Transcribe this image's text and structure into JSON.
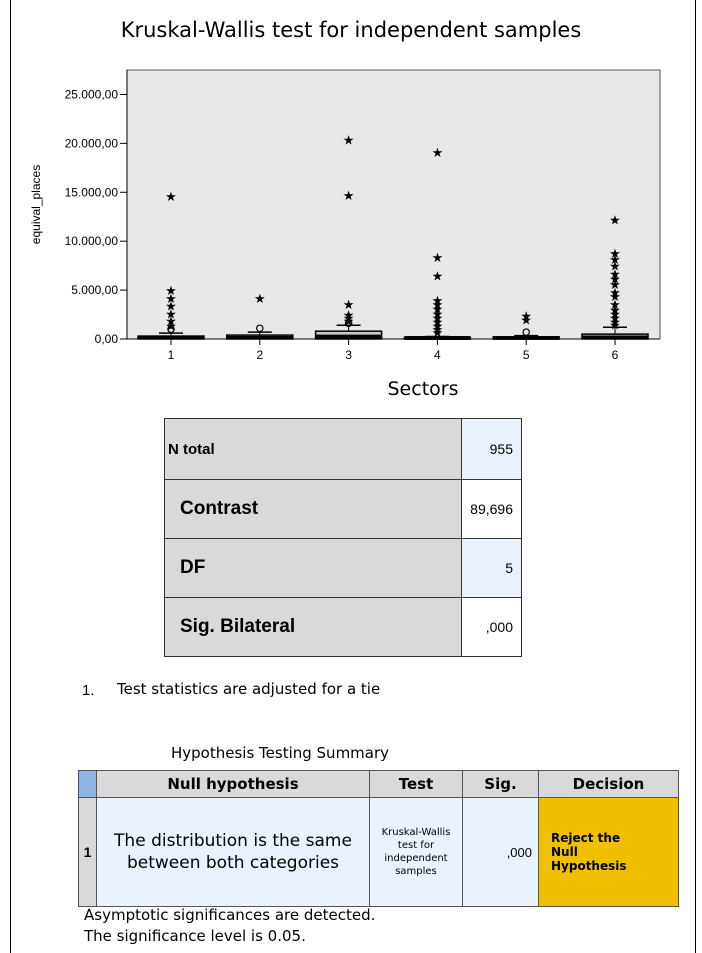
{
  "chart_data": {
    "type": "boxplot",
    "title": "Kruskal-Wallis test for independent samples",
    "xlabel": "Sectors",
    "ylabel": "equival_places",
    "ylim": [
      0,
      27500
    ],
    "yticks": [
      {
        "value": 0,
        "label": "0,00"
      },
      {
        "value": 5000,
        "label": "5.000,00"
      },
      {
        "value": 10000,
        "label": "10.000,00"
      },
      {
        "value": 15000,
        "label": "15.000,00"
      },
      {
        "value": 20000,
        "label": "20.000,00"
      },
      {
        "value": 25000,
        "label": "25.000,00"
      }
    ],
    "categories": [
      "1",
      "2",
      "3",
      "4",
      "5",
      "6"
    ],
    "boxes": [
      {
        "category": "1",
        "q1": 0,
        "median": 100,
        "q3": 300,
        "whisker_high": 600,
        "outliers": [
          1000
        ],
        "extremes": [
          14600,
          5000,
          4200,
          3400,
          2600,
          1900,
          1400
        ]
      },
      {
        "category": "2",
        "q1": 0,
        "median": 150,
        "q3": 400,
        "whisker_high": 700,
        "outliers": [
          1100
        ],
        "extremes": [
          4200
        ]
      },
      {
        "category": "3",
        "q1": 0,
        "median": 300,
        "q3": 800,
        "whisker_high": 1400,
        "outliers": [
          1600
        ],
        "extremes": [
          20400,
          14700,
          3600,
          2500,
          2200,
          1900
        ]
      },
      {
        "category": "4",
        "q1": 0,
        "median": 50,
        "q3": 150,
        "whisker_high": 250,
        "outliers": [],
        "extremes": [
          19100,
          8400,
          6500,
          4000,
          3600,
          3100,
          2600,
          2200,
          1800,
          1400,
          1000,
          700
        ]
      },
      {
        "category": "5",
        "q1": 0,
        "median": 60,
        "q3": 200,
        "whisker_high": 350,
        "outliers": [
          700
        ],
        "extremes": [
          2400,
          2000
        ]
      },
      {
        "category": "6",
        "q1": 0,
        "median": 200,
        "q3": 500,
        "whisker_high": 1200,
        "outliers": [],
        "extremes": [
          12200,
          8800,
          8200,
          7500,
          6700,
          6200,
          5600,
          4800,
          4400,
          3600,
          3000,
          2600,
          2200,
          1800,
          1500
        ]
      }
    ]
  },
  "stats_table": [
    {
      "label": "N total",
      "value": "955",
      "value_bg": "#eaf3fd",
      "small": true
    },
    {
      "label": "Contrast",
      "value": "89,696",
      "value_bg": "#ffffff",
      "small": false
    },
    {
      "label": "DF",
      "value": "5",
      "value_bg": "#eaf3fd",
      "small": false
    },
    {
      "label": "Sig. Bilateral",
      "value": ",000",
      "value_bg": "#ffffff",
      "small": false
    }
  ],
  "note": {
    "number": "1.",
    "text": "Test statistics are adjusted for a tie"
  },
  "summary": {
    "title": "Hypothesis Testing Summary",
    "headers": {
      "null_hypothesis": "Null hypothesis",
      "test": "Test",
      "sig": "Sig.",
      "decision": "Decision"
    },
    "row": {
      "number": "1",
      "null_hypothesis_line1": "The distribution is the same",
      "null_hypothesis_line2": "between both categories",
      "test_lines": [
        "Kruskal-Wallis",
        "test for",
        "independent",
        "samples"
      ],
      "sig": ",000",
      "decision_lines": [
        "Reject the",
        "Null",
        "Hypothesis"
      ]
    },
    "footnote1": "Asymptotic significances are detected.",
    "footnote2": "The significance level is 0.05.",
    "colors": {
      "header_corner": "#8db4e2",
      "decision_bg": "#f0c000",
      "row_bg": "#eaf3fd"
    }
  }
}
